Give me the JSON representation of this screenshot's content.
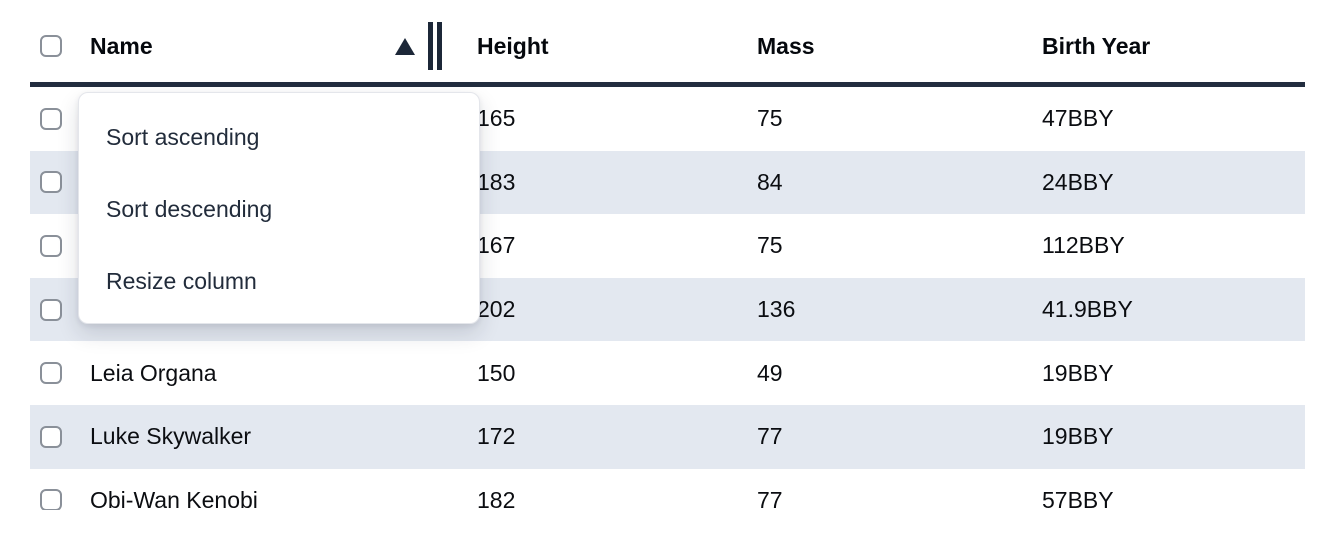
{
  "table": {
    "columns": [
      {
        "key": "name",
        "label": "Name"
      },
      {
        "key": "height",
        "label": "Height"
      },
      {
        "key": "mass",
        "label": "Mass"
      },
      {
        "key": "birth_year",
        "label": "Birth Year"
      }
    ],
    "sort": {
      "column": "Name",
      "direction": "ascending"
    },
    "rows": [
      {
        "name": "",
        "height": "165",
        "mass": "75",
        "birth_year": "47BBY"
      },
      {
        "name": "",
        "height": "183",
        "mass": "84",
        "birth_year": "24BBY"
      },
      {
        "name": "",
        "height": "167",
        "mass": "75",
        "birth_year": "112BBY"
      },
      {
        "name": "",
        "height": "202",
        "mass": "136",
        "birth_year": "41.9BBY"
      },
      {
        "name": "Leia Organa",
        "height": "150",
        "mass": "49",
        "birth_year": "19BBY"
      },
      {
        "name": "Luke Skywalker",
        "height": "172",
        "mass": "77",
        "birth_year": "19BBY"
      },
      {
        "name": "Obi-Wan Kenobi",
        "height": "182",
        "mass": "77",
        "birth_year": "57BBY"
      }
    ]
  },
  "context_menu": {
    "items": [
      {
        "label": "Sort ascending"
      },
      {
        "label": "Sort descending"
      },
      {
        "label": "Resize column"
      }
    ]
  },
  "colors": {
    "row_stripe": "#e3e8f0",
    "header_border": "#222d3f",
    "icon": "#1c2738",
    "cell_text": "#0b0d11",
    "menu_text": "#222c3b"
  }
}
